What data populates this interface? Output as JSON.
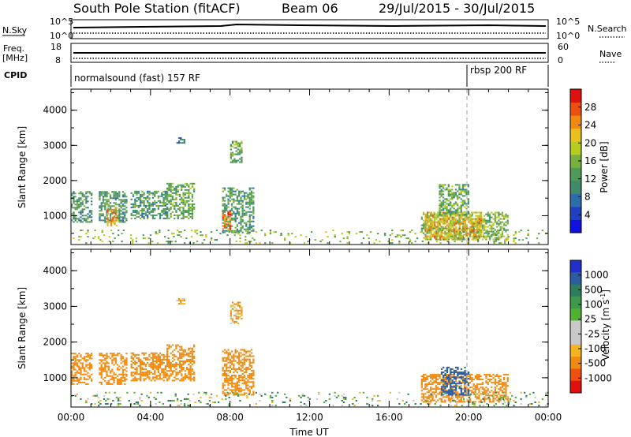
{
  "header": {
    "station": "South Pole Station (fitACF)",
    "beam": "Beam 06",
    "dates": "29/Jul/2015 - 30/Jul/2015"
  },
  "summary": {
    "nsky_label": "N.Sky",
    "nsky_ticks": [
      "10^5",
      "10^0"
    ],
    "nsearch_label": "N.Search",
    "nsearch_ticks": [
      "10^5",
      "10^0"
    ],
    "freq_label_1": "Freq.",
    "freq_label_2": "[MHz]",
    "freq_ticks": [
      "18",
      "8"
    ],
    "nave_label": "Nave",
    "nave_ticks": [
      "60",
      "0"
    ],
    "cpid_label": "CPID",
    "cpid_1": "normalsound (fast) 157 RF",
    "cpid_2": "rbsp 200 RF",
    "cpid_change_hour": 20
  },
  "colors": {
    "power": [
      "#1010e0",
      "#2040c0",
      "#2e6ea8",
      "#3e8a6a",
      "#4e9a58",
      "#78b040",
      "#b8cc20",
      "#e8c020",
      "#f08a10",
      "#ea5010",
      "#e01010"
    ],
    "velocity": [
      "#e01010",
      "#ee5010",
      "#f08a10",
      "#f4b420",
      "#c8c8c8",
      "#c8c8c8",
      "#50b030",
      "#3e9a4a",
      "#2e7e5e",
      "#2c5ca0",
      "#2030c8"
    ]
  },
  "chart_data": [
    {
      "type": "heatmap",
      "title": "Power",
      "ylabel": "Slant Range [km]",
      "xlabel": "Time UT",
      "x_ticks": [
        "00:00",
        "04:00",
        "08:00",
        "12:00",
        "16:00",
        "20:00",
        "00:00"
      ],
      "x_range_hours": [
        0,
        24
      ],
      "y_ticks": [
        "1000",
        "2000",
        "3000",
        "4000"
      ],
      "ylim": [
        180,
        4600
      ],
      "colorbar_label": "Power [dB]",
      "colorbar_ticks": [
        "4",
        "8",
        "12",
        "16",
        "20",
        "24",
        "28"
      ],
      "colorbar_range": [
        0,
        32
      ],
      "regions": [
        {
          "t": [
            0.0,
            1.0
          ],
          "r": [
            800,
            1700
          ],
          "v": 12
        },
        {
          "t": [
            1.4,
            2.8
          ],
          "r": [
            800,
            1700
          ],
          "v": 12
        },
        {
          "t": [
            1.8,
            2.3
          ],
          "r": [
            700,
            1200
          ],
          "v": 24
        },
        {
          "t": [
            3.0,
            4.8
          ],
          "r": [
            900,
            1700
          ],
          "v": 12
        },
        {
          "t": [
            4.8,
            6.2
          ],
          "r": [
            900,
            1900
          ],
          "v": 14
        },
        {
          "t": [
            5.3,
            5.7
          ],
          "r": [
            3050,
            3200
          ],
          "v": 8
        },
        {
          "t": [
            7.6,
            9.2
          ],
          "r": [
            500,
            1800
          ],
          "v": 12
        },
        {
          "t": [
            7.6,
            8.0
          ],
          "r": [
            600,
            1100
          ],
          "v": 26
        },
        {
          "t": [
            8.0,
            8.6
          ],
          "r": [
            2500,
            3100
          ],
          "v": 14
        },
        {
          "t": [
            17.6,
            22.0
          ],
          "r": [
            300,
            1100
          ],
          "v": 16
        },
        {
          "t": [
            17.8,
            20.6
          ],
          "r": [
            300,
            1100
          ],
          "v": 22
        },
        {
          "t": [
            18.5,
            20.0
          ],
          "r": [
            1000,
            1900
          ],
          "v": 14
        },
        {
          "t": [
            0.0,
            24.0
          ],
          "r": [
            200,
            600
          ],
          "v": 16
        }
      ]
    },
    {
      "type": "heatmap",
      "title": "Velocity",
      "ylabel": "Slant Range [km]",
      "xlabel": "Time UT",
      "x_ticks": [
        "00:00",
        "04:00",
        "08:00",
        "12:00",
        "16:00",
        "20:00",
        "00:00"
      ],
      "x_range_hours": [
        0,
        24
      ],
      "y_ticks": [
        "1000",
        "2000",
        "3000",
        "4000"
      ],
      "ylim": [
        180,
        4600
      ],
      "colorbar_label": "Velocity [m s^-1]",
      "colorbar_ticks": [
        "1000",
        "500",
        "100",
        "25",
        "-25",
        "-100",
        "-500",
        "-1000"
      ],
      "regions": [
        {
          "t": [
            0.0,
            1.0
          ],
          "r": [
            800,
            1700
          ],
          "v": -300
        },
        {
          "t": [
            1.4,
            2.8
          ],
          "r": [
            800,
            1700
          ],
          "v": -300
        },
        {
          "t": [
            3.0,
            4.8
          ],
          "r": [
            900,
            1700
          ],
          "v": -300
        },
        {
          "t": [
            4.8,
            6.2
          ],
          "r": [
            900,
            1900
          ],
          "v": -300
        },
        {
          "t": [
            5.3,
            5.7
          ],
          "r": [
            3050,
            3200
          ],
          "v": -100
        },
        {
          "t": [
            7.6,
            9.2
          ],
          "r": [
            500,
            1800
          ],
          "v": -300
        },
        {
          "t": [
            8.0,
            8.6
          ],
          "r": [
            2500,
            3100
          ],
          "v": -100
        },
        {
          "t": [
            17.6,
            22.0
          ],
          "r": [
            300,
            1100
          ],
          "v": -300
        },
        {
          "t": [
            18.6,
            20.0
          ],
          "r": [
            500,
            1300
          ],
          "v": 600
        },
        {
          "t": [
            0.0,
            24.0
          ],
          "r": [
            200,
            600
          ],
          "v": 60
        }
      ]
    }
  ]
}
